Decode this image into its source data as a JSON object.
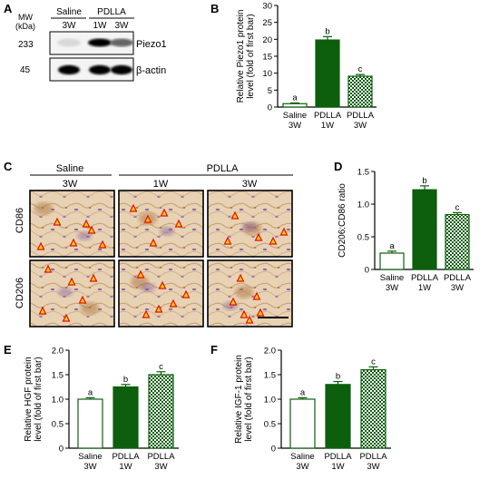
{
  "panels": {
    "A": {
      "letter": "A",
      "mw_label": "MW\n(kDa)",
      "groups": [
        {
          "name": "Saline",
          "lanes": [
            "3W"
          ]
        },
        {
          "name": "PDLLA",
          "lanes": [
            "1W",
            "3W"
          ]
        }
      ],
      "blots": [
        {
          "mw": "233",
          "protein": "Piezo1",
          "intensities": [
            0.12,
            1.0,
            0.6
          ]
        },
        {
          "mw": "45",
          "protein": "β-actin",
          "intensities": [
            1.0,
            1.0,
            1.0
          ]
        }
      ]
    },
    "C": {
      "letter": "C",
      "groups": [
        {
          "name": "Saline",
          "subs": [
            "3W"
          ]
        },
        {
          "name": "PDLLA",
          "subs": [
            "1W",
            "3W"
          ]
        }
      ],
      "rows": [
        "CD86",
        "CD206"
      ]
    }
  },
  "chart_data": [
    {
      "panel": "B",
      "type": "bar",
      "categories": [
        "Saline 3W",
        "PDLLA 1W",
        "PDLLA 3W"
      ],
      "category_lines": [
        [
          "Saline",
          "3W"
        ],
        [
          "PDLLA",
          "1W"
        ],
        [
          "PDLLA",
          "3W"
        ]
      ],
      "values": [
        1.0,
        19.8,
        9.1
      ],
      "errors": [
        0.2,
        1.0,
        0.5
      ],
      "significance": [
        "a",
        "b",
        "c"
      ],
      "ylabel": "Relative Piezo1 protein\nlevel (fold of first bar)",
      "ylim": [
        0,
        30
      ],
      "yticks": [
        0,
        5,
        10,
        15,
        20,
        25,
        30
      ],
      "styles": [
        "white",
        "darkgreen",
        "checker"
      ],
      "color": "#0d5e0d"
    },
    {
      "panel": "D",
      "type": "bar",
      "categories": [
        "Saline 3W",
        "PDLLA 1W",
        "PDLLA 3W"
      ],
      "category_lines": [
        [
          "Saline",
          "3W"
        ],
        [
          "PDLLA",
          "1W"
        ],
        [
          "PDLLA",
          "3W"
        ]
      ],
      "values": [
        0.25,
        1.22,
        0.84
      ],
      "errors": [
        0.03,
        0.06,
        0.03
      ],
      "significance": [
        "a",
        "b",
        "c"
      ],
      "ylabel": "CD206:CD86 ratio",
      "ylim": [
        0,
        1.5
      ],
      "yticks": [
        0,
        0.5,
        1.0,
        1.5
      ],
      "tick_labels": [
        "0",
        "0.5",
        "1.0",
        "1.5"
      ],
      "styles": [
        "white",
        "darkgreen",
        "checker"
      ],
      "color": "#0d5e0d"
    },
    {
      "panel": "E",
      "type": "bar",
      "categories": [
        "Saline 3W",
        "PDLLA 1W",
        "PDLLA 3W"
      ],
      "category_lines": [
        [
          "Saline",
          "3W"
        ],
        [
          "PDLLA",
          "1W"
        ],
        [
          "PDLLA",
          "3W"
        ]
      ],
      "values": [
        1.0,
        1.25,
        1.5
      ],
      "errors": [
        0.03,
        0.05,
        0.06
      ],
      "significance": [
        "a",
        "b",
        "c"
      ],
      "ylabel": "Relative HGF protein\nlevel (fold of first bar)",
      "ylim": [
        0,
        2.0
      ],
      "yticks": [
        0,
        0.5,
        1.0,
        1.5,
        2.0
      ],
      "tick_labels": [
        "0",
        "0.5",
        "1.0",
        "1.5",
        "2.0"
      ],
      "styles": [
        "white",
        "darkgreen",
        "checker"
      ],
      "color": "#0d5e0d"
    },
    {
      "panel": "F",
      "type": "bar",
      "categories": [
        "Saline 3W",
        "PDLLA 1W",
        "PDLLA 3W"
      ],
      "category_lines": [
        [
          "Saline",
          "3W"
        ],
        [
          "PDLLA",
          "1W"
        ],
        [
          "PDLLA",
          "3W"
        ]
      ],
      "values": [
        1.0,
        1.3,
        1.6
      ],
      "errors": [
        0.03,
        0.06,
        0.06
      ],
      "significance": [
        "a",
        "b",
        "c"
      ],
      "ylabel": "Relative IGF-1 protein\nlevel (fold of first bar)",
      "ylim": [
        0,
        2.0
      ],
      "yticks": [
        0,
        0.5,
        1.0,
        1.5,
        2.0
      ],
      "tick_labels": [
        "0",
        "0.5",
        "1.0",
        "1.5",
        "2.0"
      ],
      "styles": [
        "white",
        "darkgreen",
        "checker"
      ],
      "color": "#0d5e0d"
    }
  ]
}
